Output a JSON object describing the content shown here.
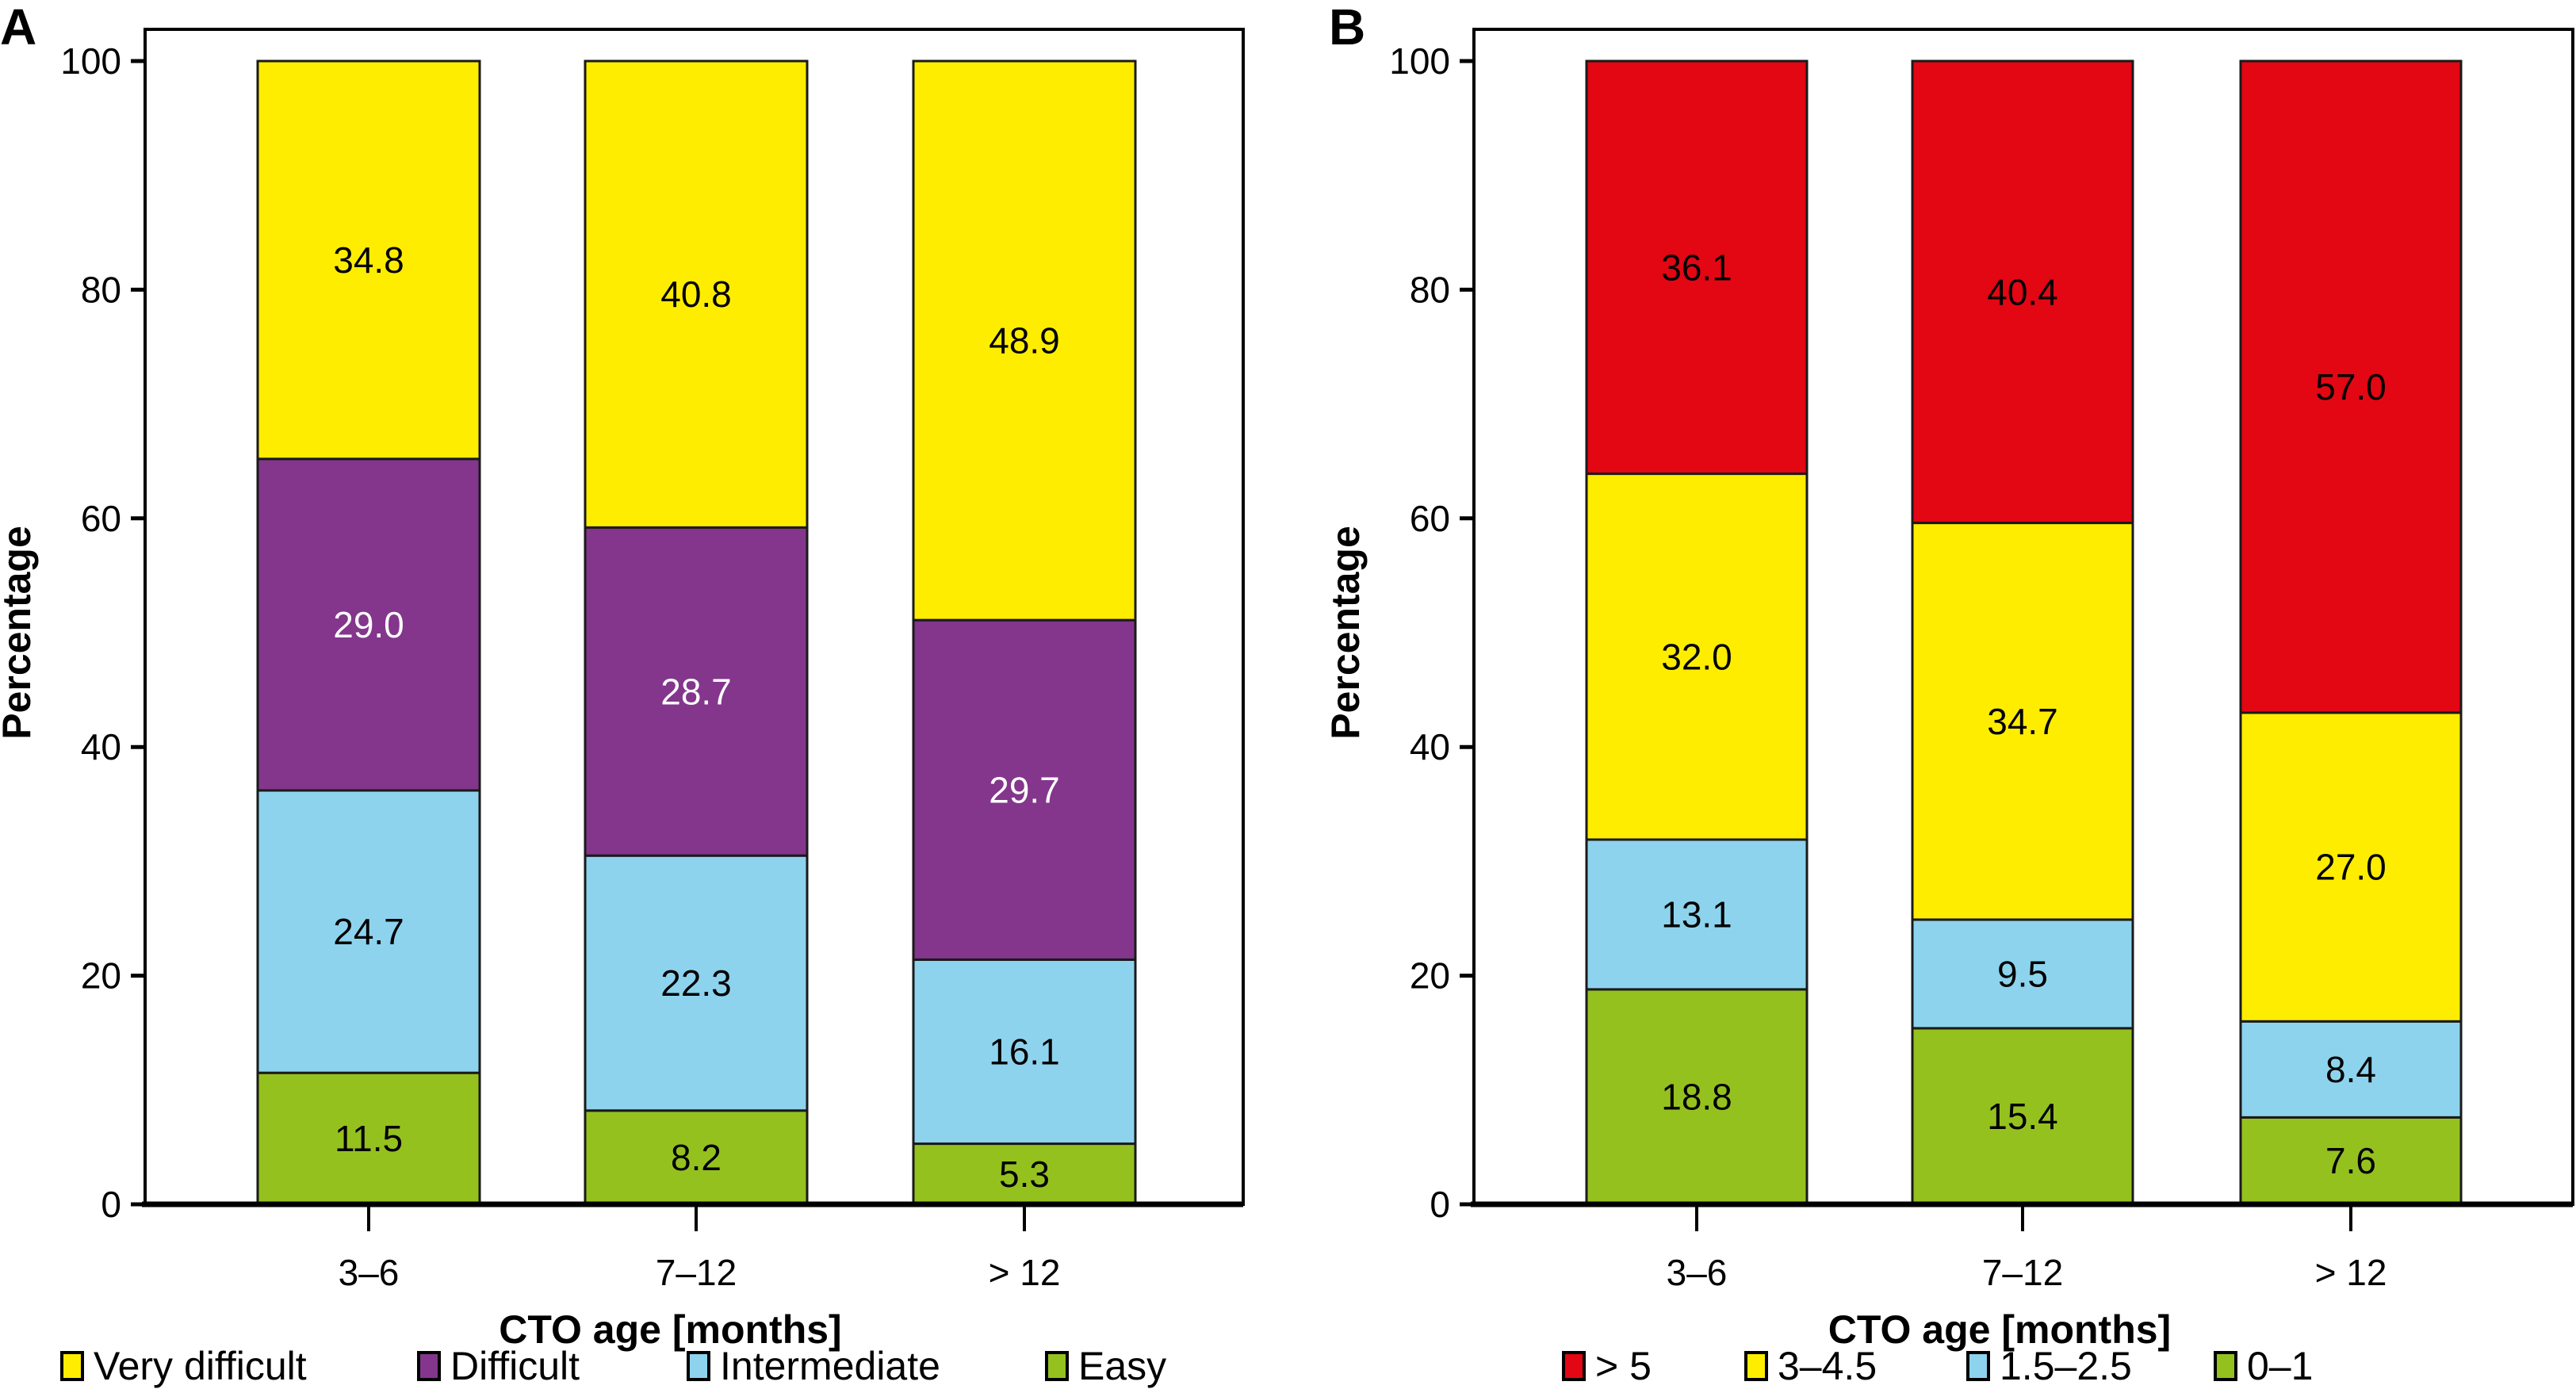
{
  "chart_data": [
    {
      "type": "bar",
      "stacked": true,
      "panel": "A",
      "title": "",
      "xlabel": "CTO age [months]",
      "ylabel": "Percentage",
      "ylim": [
        0,
        100
      ],
      "yticks": [
        0,
        20,
        40,
        60,
        80,
        100
      ],
      "categories": [
        "3–6",
        "7–12",
        "> 12"
      ],
      "legend_position": "bottom",
      "series": [
        {
          "name": "Easy",
          "color": "#95c11f",
          "label_color": "#000000",
          "values": [
            11.5,
            8.2,
            5.3
          ]
        },
        {
          "name": "Intermediate",
          "color": "#8ed3ed",
          "label_color": "#000000",
          "values": [
            24.7,
            22.3,
            16.1
          ]
        },
        {
          "name": "Difficult",
          "color": "#83368c",
          "label_color": "#ffffff",
          "values": [
            29.0,
            28.7,
            29.7
          ]
        },
        {
          "name": "Very difficult",
          "color": "#ffed00",
          "label_color": "#000000",
          "values": [
            34.8,
            40.8,
            48.9
          ]
        }
      ],
      "legend_order": [
        "Very difficult",
        "Difficult",
        "Intermediate",
        "Easy"
      ]
    },
    {
      "type": "bar",
      "stacked": true,
      "panel": "B",
      "title": "",
      "xlabel": "CTO age [months]",
      "ylabel": "Percentage",
      "ylim": [
        0,
        100
      ],
      "yticks": [
        0,
        20,
        40,
        60,
        80,
        100
      ],
      "categories": [
        "3–6",
        "7–12",
        "> 12"
      ],
      "legend_position": "bottom",
      "series": [
        {
          "name": "0–1",
          "color": "#95c11f",
          "label_color": "#000000",
          "values": [
            18.8,
            15.4,
            7.6
          ]
        },
        {
          "name": "1.5–2.5",
          "color": "#8ed3ed",
          "label_color": "#000000",
          "values": [
            13.1,
            9.5,
            8.4
          ]
        },
        {
          "name": "3–4.5",
          "color": "#ffed00",
          "label_color": "#000000",
          "values": [
            32.0,
            34.7,
            27.0
          ]
        },
        {
          "name": "> 5",
          "color": "#e30613",
          "label_color": "#000000",
          "values": [
            36.1,
            40.4,
            57.0
          ]
        }
      ],
      "legend_order": [
        "> 5",
        "3–4.5",
        "1.5–2.5",
        "0–1"
      ]
    }
  ]
}
